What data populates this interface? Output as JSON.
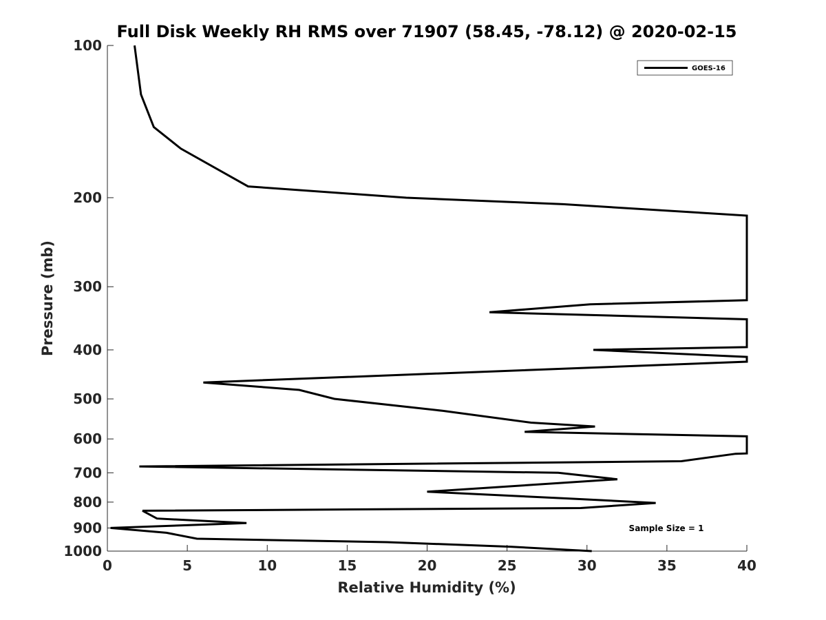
{
  "chart_data": {
    "type": "line",
    "title": "Full Disk Weekly RH RMS over 71907 (58.45, -78.12) @ 2020-02-15",
    "xlabel": "Relative Humidity (%)",
    "ylabel": "Pressure (mb)",
    "xlim": [
      0,
      40
    ],
    "ylim": [
      1000,
      100
    ],
    "yscale": "log",
    "y_reversed": true,
    "xticks": [
      0,
      5,
      10,
      15,
      20,
      25,
      30,
      35,
      40
    ],
    "xtick_labels": [
      "0",
      "5",
      "10",
      "15",
      "20",
      "25",
      "30",
      "35",
      "40"
    ],
    "yticks": [
      100,
      200,
      300,
      400,
      500,
      600,
      700,
      800,
      900,
      1000
    ],
    "ytick_labels": [
      "100",
      "200",
      "300",
      "400",
      "500",
      "600",
      "700",
      "800",
      "900",
      "1000"
    ],
    "grid": false,
    "legend_position": "top-right",
    "series": [
      {
        "name": "GOES-16",
        "color": "#000000",
        "points": [
          [
            1.7,
            100
          ],
          [
            2.1,
            125
          ],
          [
            2.9,
            145
          ],
          [
            4.6,
            160
          ],
          [
            8.8,
            190
          ],
          [
            18.7,
            200
          ],
          [
            28.5,
            206
          ],
          [
            40,
            217
          ],
          [
            40,
            319
          ],
          [
            30.2,
            325
          ],
          [
            23.9,
            337
          ],
          [
            40,
            348
          ],
          [
            40,
            395
          ],
          [
            30.4,
            400
          ],
          [
            40,
            413
          ],
          [
            40,
            422
          ],
          [
            6.0,
            464
          ],
          [
            12.0,
            480
          ],
          [
            14.2,
            500
          ],
          [
            21.0,
            528
          ],
          [
            26.5,
            557
          ],
          [
            30.5,
            567
          ],
          [
            26.1,
            581
          ],
          [
            40,
            593
          ],
          [
            40,
            641
          ],
          [
            39.3,
            642
          ],
          [
            35.9,
            664
          ],
          [
            2.0,
            680
          ],
          [
            28.2,
            700
          ],
          [
            31.9,
            721
          ],
          [
            20.0,
            763
          ],
          [
            28.8,
            787
          ],
          [
            34.3,
            803
          ],
          [
            29.6,
            822
          ],
          [
            2.2,
            832
          ],
          [
            3.1,
            862
          ],
          [
            8.7,
            880
          ],
          [
            0.2,
            900
          ],
          [
            3.7,
            920
          ],
          [
            5.6,
            945
          ],
          [
            17.5,
            960
          ],
          [
            25.2,
            980
          ],
          [
            30.3,
            1000
          ]
        ]
      }
    ],
    "legend": {
      "entries": [
        "GOES-16"
      ]
    },
    "annotation": "Sample Size = 1"
  }
}
